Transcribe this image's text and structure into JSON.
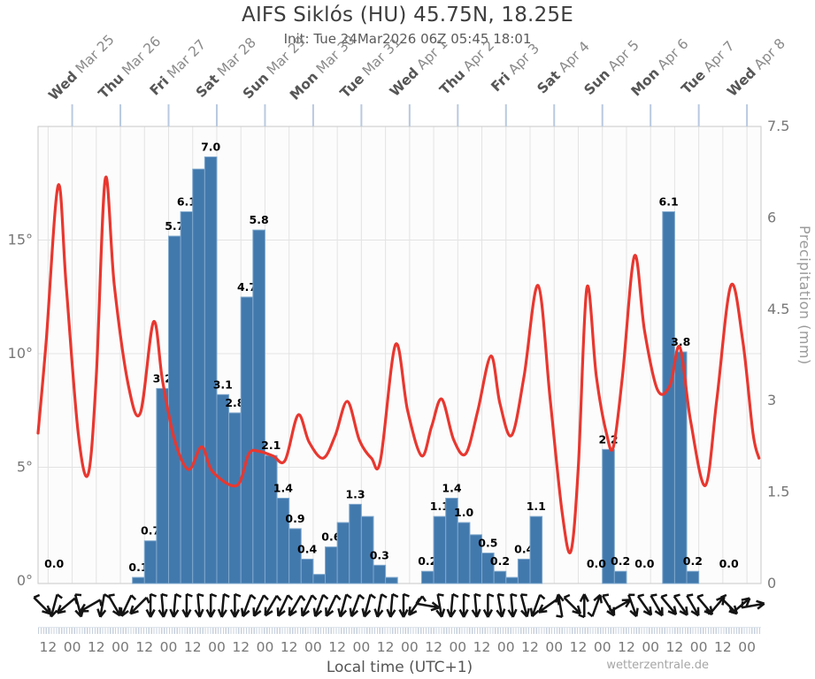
{
  "header": {
    "title": "AIFS Siklós (HU) 45.75N, 18.25E",
    "subtitle": "Init: Tue 24Mar2026 06Z 05:45 18:01"
  },
  "footer": {
    "xlabel": "Local time (UTC+1)",
    "watermark": "wetterzentrale.de"
  },
  "colors": {
    "bar_fill": "#4279ad",
    "bar_stroke": "#7fa8cd",
    "temp_line": "#e8372f",
    "grid": "#e3e3e3",
    "plot_border": "#c9c9c9",
    "plot_bg": "#fcfcfc",
    "day_tick": "#b9c9e0",
    "axis_text": "#787878",
    "bar_label_text": "#000000",
    "weekday_text": "#565656",
    "date_text": "#8a8a8a",
    "wind_arrow": "#141414"
  },
  "chart_data": {
    "type": "bar",
    "subtype": "meteogram: 6h precipitation bars + 2m temperature line + wind arrows",
    "title": "AIFS Siklós (HU) 45.75N, 18.25E",
    "xlabel": "Local time (UTC+1)",
    "x_axis": {
      "start": "Tue Mar 24 07:00 local",
      "end": "Wed Apr 8 07:00 local",
      "span_hours": 360,
      "tick_interval_hours": 12,
      "tick_labels": [
        "12",
        "00",
        "12",
        "00",
        "12",
        "00",
        "12",
        "00",
        "12",
        "00",
        "12",
        "00",
        "12",
        "00",
        "12",
        "00",
        "12",
        "00",
        "12",
        "00",
        "12",
        "00",
        "12",
        "00",
        "12",
        "00",
        "12",
        "00",
        "12",
        "00"
      ]
    },
    "day_labels": [
      {
        "weekday": "Wed",
        "date": "Mar 25"
      },
      {
        "weekday": "Thu",
        "date": "Mar 26"
      },
      {
        "weekday": "Fri",
        "date": "Mar 27"
      },
      {
        "weekday": "Sat",
        "date": "Mar 28"
      },
      {
        "weekday": "Sun",
        "date": "Mar 29"
      },
      {
        "weekday": "Mon",
        "date": "Mar 30"
      },
      {
        "weekday": "Tue",
        "date": "Mar 31"
      },
      {
        "weekday": "Wed",
        "date": "Apr 1"
      },
      {
        "weekday": "Thu",
        "date": "Apr 2"
      },
      {
        "weekday": "Fri",
        "date": "Apr 3"
      },
      {
        "weekday": "Sat",
        "date": "Apr 4"
      },
      {
        "weekday": "Sun",
        "date": "Apr 5"
      },
      {
        "weekday": "Mon",
        "date": "Apr 6"
      },
      {
        "weekday": "Tue",
        "date": "Apr 7"
      },
      {
        "weekday": "Wed",
        "date": "Apr 8"
      }
    ],
    "left_axis": {
      "unit": "°C",
      "ticks": [
        "0°",
        "5°",
        "10°",
        "15°"
      ],
      "tick_values": [
        0,
        5,
        10,
        15
      ],
      "range": [
        0,
        20
      ]
    },
    "right_axis": {
      "label": "Precipitation (mm)",
      "ticks": [
        "0",
        "1.5",
        "3",
        "4.5",
        "6",
        "7.5"
      ],
      "tick_values": [
        0,
        1.5,
        3,
        4.5,
        6,
        7.5
      ],
      "range": [
        0,
        7.5
      ]
    },
    "precip_series": {
      "unit": "mm",
      "bar_interval_hours": 6,
      "bars": [
        {
          "t": 47,
          "mm": 0.1,
          "label": "0.1"
        },
        {
          "t": 53,
          "mm": 0.7,
          "label": "0.7"
        },
        {
          "t": 59,
          "mm": 3.2,
          "label": "3.2"
        },
        {
          "t": 65,
          "mm": 5.7,
          "label": "5.7"
        },
        {
          "t": 71,
          "mm": 6.1,
          "label": "6.1"
        },
        {
          "t": 77,
          "mm": 6.8,
          "label": null
        },
        {
          "t": 83,
          "mm": 7.0,
          "label": "7.0"
        },
        {
          "t": 89,
          "mm": 3.1,
          "label": "3.1"
        },
        {
          "t": 95,
          "mm": 2.8,
          "label": "2.8"
        },
        {
          "t": 101,
          "mm": 4.7,
          "label": "4.7"
        },
        {
          "t": 107,
          "mm": 5.8,
          "label": "5.8"
        },
        {
          "t": 113,
          "mm": 2.1,
          "label": "2.1"
        },
        {
          "t": 119,
          "mm": 1.4,
          "label": "1.4"
        },
        {
          "t": 125,
          "mm": 0.9,
          "label": "0.9"
        },
        {
          "t": 131,
          "mm": 0.4,
          "label": "0.4"
        },
        {
          "t": 137,
          "mm": 0.15,
          "label": null
        },
        {
          "t": 143,
          "mm": 0.6,
          "label": "0.6"
        },
        {
          "t": 149,
          "mm": 1.0,
          "label": null
        },
        {
          "t": 155,
          "mm": 1.3,
          "label": "1.3"
        },
        {
          "t": 161,
          "mm": 1.1,
          "label": null
        },
        {
          "t": 167,
          "mm": 0.3,
          "label": "0.3"
        },
        {
          "t": 173,
          "mm": 0.1,
          "label": null
        },
        {
          "t": 191,
          "mm": 0.2,
          "label": "0.2"
        },
        {
          "t": 197,
          "mm": 1.1,
          "label": "1.1"
        },
        {
          "t": 203,
          "mm": 1.4,
          "label": "1.4"
        },
        {
          "t": 209,
          "mm": 1.0,
          "label": "1.0"
        },
        {
          "t": 215,
          "mm": 0.8,
          "label": null
        },
        {
          "t": 221,
          "mm": 0.5,
          "label": "0.5"
        },
        {
          "t": 227,
          "mm": 0.2,
          "label": "0.2"
        },
        {
          "t": 233,
          "mm": 0.1,
          "label": null
        },
        {
          "t": 239,
          "mm": 0.4,
          "label": "0.4"
        },
        {
          "t": 245,
          "mm": 1.1,
          "label": "1.1"
        },
        {
          "t": 281,
          "mm": 2.2,
          "label": "2.2"
        },
        {
          "t": 287,
          "mm": 0.2,
          "label": "0.2"
        },
        {
          "t": 311,
          "mm": 6.1,
          "label": "6.1"
        },
        {
          "t": 317,
          "mm": 3.8,
          "label": "3.8"
        },
        {
          "t": 323,
          "mm": 0.2,
          "label": "0.2"
        }
      ],
      "zero_labels": [
        {
          "t": 8,
          "label": "0.0"
        },
        {
          "t": 278,
          "label": "0.0"
        },
        {
          "t": 302,
          "label": "0.0"
        },
        {
          "t": 344,
          "label": "0.0"
        }
      ]
    },
    "temp_series": {
      "unit": "°C",
      "points": [
        [
          0,
          6.5
        ],
        [
          4,
          10.5
        ],
        [
          10,
          17.4
        ],
        [
          14,
          13.0
        ],
        [
          20,
          6.5
        ],
        [
          25,
          4.7
        ],
        [
          29,
          9.0
        ],
        [
          33.5,
          17.7
        ],
        [
          38,
          13.0
        ],
        [
          45,
          8.6
        ],
        [
          51,
          7.4
        ],
        [
          57.5,
          11.4
        ],
        [
          62,
          8.8
        ],
        [
          68,
          6.2
        ],
        [
          75,
          4.9
        ],
        [
          81.5,
          5.9
        ],
        [
          87,
          4.8
        ],
        [
          99,
          4.2
        ],
        [
          105,
          5.6
        ],
        [
          110,
          5.7
        ],
        [
          117,
          5.5
        ],
        [
          123,
          5.3
        ],
        [
          129.5,
          7.3
        ],
        [
          135,
          6.1
        ],
        [
          142,
          5.4
        ],
        [
          148,
          6.4
        ],
        [
          154,
          7.9
        ],
        [
          160,
          6.2
        ],
        [
          166,
          5.4
        ],
        [
          170.5,
          5.3
        ],
        [
          178,
          10.4
        ],
        [
          184,
          7.5
        ],
        [
          191,
          5.5
        ],
        [
          196,
          6.8
        ],
        [
          201,
          8.0
        ],
        [
          207,
          6.2
        ],
        [
          213,
          5.6
        ],
        [
          219,
          7.5
        ],
        [
          225.5,
          9.9
        ],
        [
          230,
          7.8
        ],
        [
          235.8,
          6.4
        ],
        [
          242,
          9.0
        ],
        [
          249,
          13.0
        ],
        [
          255,
          8.0
        ],
        [
          261,
          3.0
        ],
        [
          265.3,
          1.3
        ],
        [
          269,
          5.0
        ],
        [
          273.3,
          12.9
        ],
        [
          278,
          9.0
        ],
        [
          283,
          6.5
        ],
        [
          286.5,
          5.9
        ],
        [
          291,
          9.0
        ],
        [
          297,
          14.3
        ],
        [
          302,
          11.0
        ],
        [
          308.5,
          8.4
        ],
        [
          314.7,
          8.6
        ],
        [
          319.5,
          10.3
        ],
        [
          325,
          7.0
        ],
        [
          332.3,
          4.2
        ],
        [
          338,
          8.0
        ],
        [
          345,
          13.0
        ],
        [
          351,
          10.5
        ],
        [
          356,
          6.5
        ],
        [
          359,
          5.4
        ]
      ]
    },
    "wind": {
      "interval_hours": 6,
      "angles_deg": [
        -45,
        15,
        50,
        -15,
        60,
        10,
        -30,
        25,
        45,
        0,
        -5,
        5,
        0,
        -5,
        0,
        5,
        0,
        20,
        25,
        30,
        25,
        30,
        25,
        20,
        25,
        15,
        20,
        15,
        10,
        5,
        0,
        35,
        -80,
        -10,
        5,
        0,
        -5,
        0,
        -10,
        -5,
        -15,
        20,
        55,
        170,
        -45,
        180,
        -160,
        -30,
        -120,
        -20,
        -35,
        -30,
        -40,
        -35,
        -30,
        -40,
        -140,
        -45,
        -130,
        -100
      ]
    }
  }
}
